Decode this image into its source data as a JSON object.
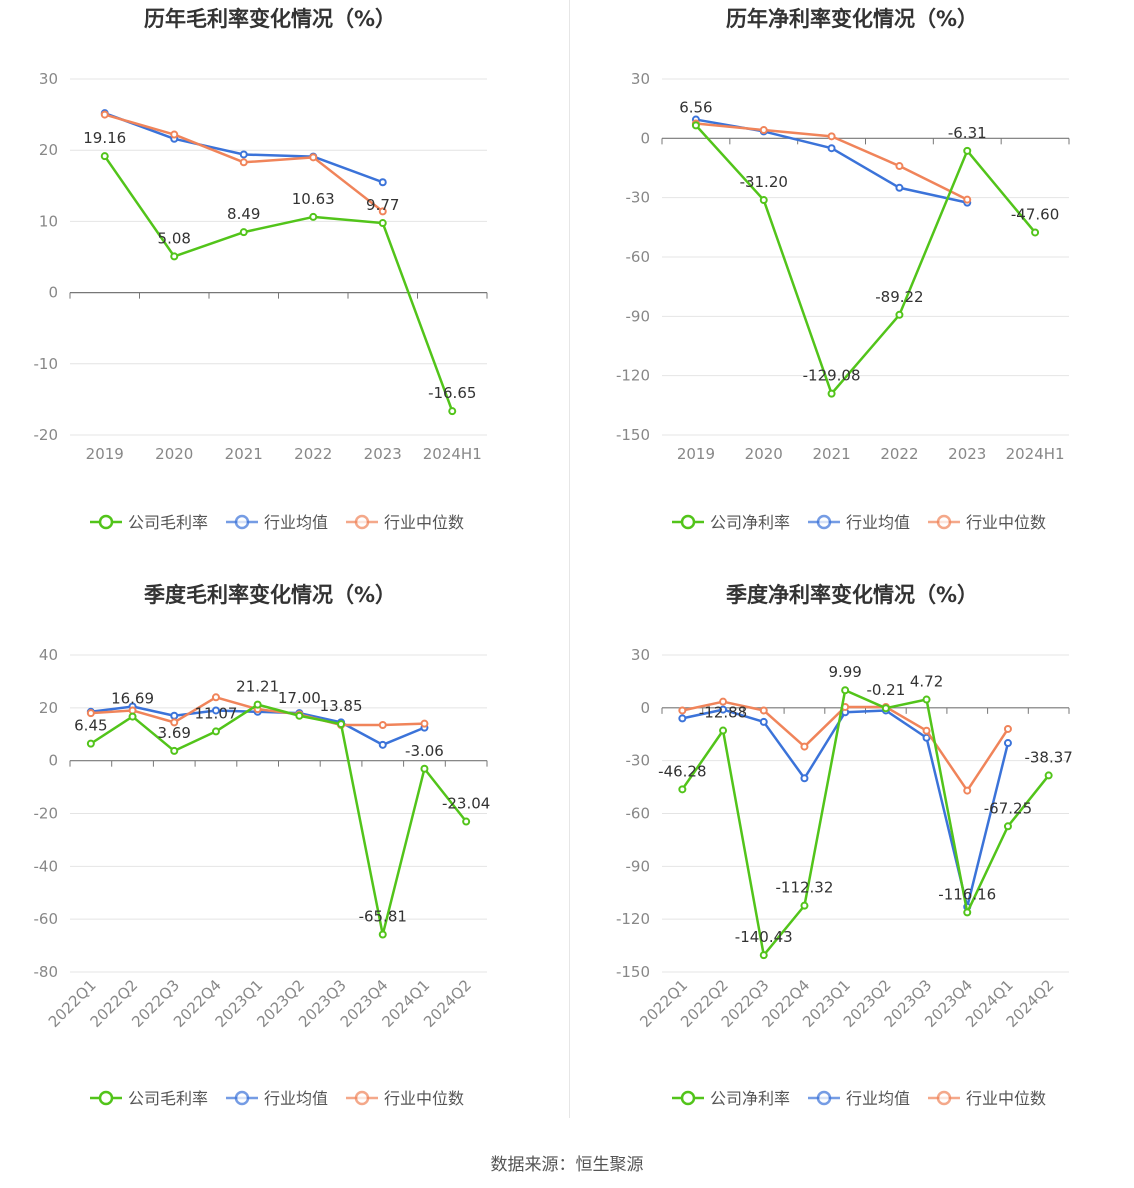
{
  "source_text": "数据来源：恒生聚源",
  "colors": {
    "company": "#52c41a",
    "avg": "#3b73d9",
    "median": "#f0845a"
  },
  "chart_data": [
    {
      "type": "line",
      "title": "历年毛利率变化情况（%）",
      "categories": [
        "2019",
        "2020",
        "2021",
        "2022",
        "2023",
        "2024H1"
      ],
      "ylim": [
        -20,
        30
      ],
      "yticks": [
        30,
        20,
        10,
        0,
        -10,
        -20
      ],
      "x_rotated": false,
      "legend": [
        "公司毛利率",
        "行业均值",
        "行业中位数"
      ],
      "series": [
        {
          "name": "公司毛利率",
          "values": [
            19.16,
            5.08,
            8.49,
            10.63,
            9.77,
            -16.65
          ],
          "labels": [
            "19.16",
            "5.08",
            "8.49",
            "10.63",
            "9.77",
            "-16.65"
          ]
        },
        {
          "name": "行业均值",
          "values": [
            25.2,
            21.6,
            19.4,
            19.1,
            15.5,
            null
          ]
        },
        {
          "name": "行业中位数",
          "values": [
            25.0,
            22.2,
            18.3,
            19.0,
            11.4,
            null
          ]
        }
      ]
    },
    {
      "type": "line",
      "title": "历年净利率变化情况（%）",
      "categories": [
        "2019",
        "2020",
        "2021",
        "2022",
        "2023",
        "2024H1"
      ],
      "ylim": [
        -150,
        30
      ],
      "yticks": [
        30,
        0,
        -30,
        -60,
        -90,
        -120,
        -150
      ],
      "x_rotated": false,
      "legend": [
        "公司净利率",
        "行业均值",
        "行业中位数"
      ],
      "series": [
        {
          "name": "公司净利率",
          "values": [
            6.56,
            -31.2,
            -129.08,
            -89.22,
            -6.31,
            -47.6
          ],
          "labels": [
            "6.56",
            "-31.20",
            "-129.08",
            "-89.22",
            "-6.31",
            "-47.60"
          ]
        },
        {
          "name": "行业均值",
          "values": [
            9.5,
            3.5,
            -5.0,
            -25.0,
            -32.5,
            null
          ]
        },
        {
          "name": "行业中位数",
          "values": [
            7.5,
            4.2,
            1.0,
            -14.0,
            -31.0,
            null
          ]
        }
      ]
    },
    {
      "type": "line",
      "title": "季度毛利率变化情况（%）",
      "categories": [
        "2022Q1",
        "2022Q2",
        "2022Q3",
        "2022Q4",
        "2023Q1",
        "2023Q2",
        "2023Q3",
        "2023Q4",
        "2024Q1",
        "2024Q2"
      ],
      "ylim": [
        -80,
        40
      ],
      "yticks": [
        40,
        20,
        0,
        -20,
        -40,
        -60,
        -80
      ],
      "x_rotated": true,
      "legend": [
        "公司毛利率",
        "行业均值",
        "行业中位数"
      ],
      "series": [
        {
          "name": "公司毛利率",
          "values": [
            6.45,
            16.69,
            3.69,
            11.07,
            21.21,
            17.0,
            13.85,
            -65.81,
            -3.06,
            -23.04
          ],
          "labels": [
            "6.45",
            "16.69",
            "3.69",
            "11.07",
            "21.21",
            "17.00",
            "13.85",
            "-65.81",
            "-3.06",
            "-23.04"
          ]
        },
        {
          "name": "行业均值",
          "values": [
            18.5,
            20.5,
            17.0,
            19.0,
            18.5,
            18.0,
            14.5,
            6.0,
            12.5,
            null
          ]
        },
        {
          "name": "行业中位数",
          "values": [
            18.0,
            19.0,
            14.5,
            24.0,
            19.5,
            17.5,
            13.5,
            13.5,
            14.0,
            null
          ]
        }
      ]
    },
    {
      "type": "line",
      "title": "季度净利率变化情况（%）",
      "categories": [
        "2022Q1",
        "2022Q2",
        "2022Q3",
        "2022Q4",
        "2023Q1",
        "2023Q2",
        "2023Q3",
        "2023Q4",
        "2024Q1",
        "2024Q2"
      ],
      "ylim": [
        -150,
        30
      ],
      "yticks": [
        30,
        0,
        -30,
        -60,
        -90,
        -120,
        -150
      ],
      "x_rotated": true,
      "legend": [
        "公司净利率",
        "行业均值",
        "行业中位数"
      ],
      "series": [
        {
          "name": "公司净利率",
          "values": [
            -46.28,
            -12.88,
            -140.43,
            -112.32,
            9.99,
            -0.21,
            4.72,
            -116.16,
            -67.25,
            -38.37
          ],
          "labels": [
            "-46.28",
            "-12.88",
            "-140.43",
            "-112.32",
            "9.99",
            "-0.21",
            "4.72",
            "-116.16",
            "-67.25",
            "-38.37"
          ]
        },
        {
          "name": "行业均值",
          "values": [
            -6.0,
            -1.0,
            -8.0,
            -40.0,
            -2.5,
            -1.5,
            -17.0,
            -113.0,
            -20.0,
            null
          ]
        },
        {
          "name": "行业中位数",
          "values": [
            -1.5,
            3.5,
            -1.5,
            -22.0,
            0.5,
            0.5,
            -13.0,
            -47.0,
            -12.0,
            null
          ]
        }
      ]
    }
  ]
}
